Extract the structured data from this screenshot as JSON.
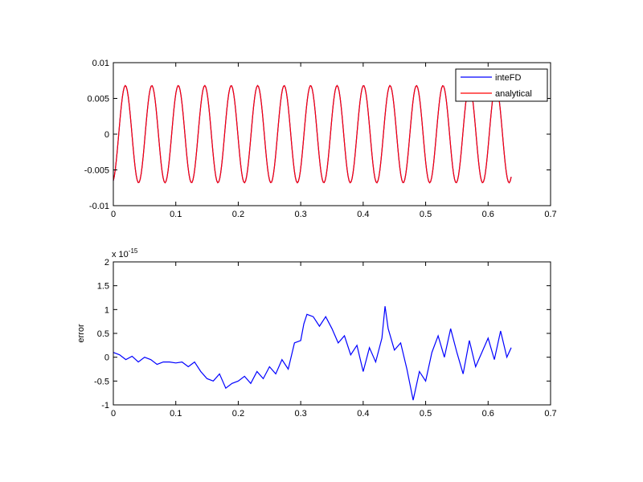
{
  "chart_data": [
    {
      "type": "line",
      "xlabel": "",
      "ylabel": "",
      "xlim": [
        0,
        0.7
      ],
      "ylim": [
        -0.01,
        0.01
      ],
      "x_ticks": [
        "0",
        "0.1",
        "0.2",
        "0.3",
        "0.4",
        "0.5",
        "0.6",
        "0.7"
      ],
      "y_ticks": [
        "-0.01",
        "-0.005",
        "0",
        "0.005",
        "0.01"
      ],
      "grid": false,
      "legend": {
        "placement": "top-right",
        "entries": [
          "inteFD",
          "analytical"
        ]
      },
      "series": [
        {
          "name": "inteFD",
          "color": "#0000ff",
          "function": "sinusoid",
          "amplitude": 0.0068,
          "frequency": 23.6,
          "phase": -1.28,
          "x_start": 0,
          "x_end": 0.637
        },
        {
          "name": "analytical",
          "color": "#ff0000",
          "function": "sinusoid",
          "amplitude": 0.0068,
          "frequency": 23.6,
          "phase": -1.28,
          "x_start": 0,
          "x_end": 0.637
        }
      ]
    },
    {
      "type": "line",
      "xlabel": "",
      "ylabel": "error",
      "y_multiplier": "x 10",
      "y_exponent": "-15",
      "xlim": [
        0,
        0.7
      ],
      "ylim": [
        -1,
        2
      ],
      "x_ticks": [
        "0",
        "0.1",
        "0.2",
        "0.3",
        "0.4",
        "0.5",
        "0.6",
        "0.7"
      ],
      "y_ticks": [
        "-1",
        "-0.5",
        "0",
        "0.5",
        "1",
        "1.5",
        "2"
      ],
      "grid": false,
      "series": [
        {
          "color": "#0000ff",
          "x": [
            0,
            0.01,
            0.02,
            0.03,
            0.04,
            0.05,
            0.06,
            0.07,
            0.08,
            0.09,
            0.1,
            0.11,
            0.12,
            0.13,
            0.14,
            0.15,
            0.16,
            0.17,
            0.18,
            0.19,
            0.2,
            0.21,
            0.22,
            0.23,
            0.24,
            0.25,
            0.26,
            0.27,
            0.28,
            0.29,
            0.3,
            0.305,
            0.31,
            0.32,
            0.33,
            0.34,
            0.35,
            0.36,
            0.37,
            0.38,
            0.39,
            0.4,
            0.41,
            0.42,
            0.43,
            0.435,
            0.44,
            0.45,
            0.46,
            0.47,
            0.48,
            0.49,
            0.5,
            0.51,
            0.52,
            0.53,
            0.54,
            0.55,
            0.56,
            0.57,
            0.58,
            0.59,
            0.6,
            0.61,
            0.62,
            0.63,
            0.637
          ],
          "y": [
            0.1,
            0.05,
            -0.05,
            0.02,
            -0.1,
            0.0,
            -0.05,
            -0.15,
            -0.1,
            -0.1,
            -0.12,
            -0.1,
            -0.2,
            -0.1,
            -0.3,
            -0.45,
            -0.5,
            -0.35,
            -0.65,
            -0.55,
            -0.5,
            -0.4,
            -0.55,
            -0.3,
            -0.45,
            -0.2,
            -0.35,
            -0.05,
            -0.25,
            0.3,
            0.35,
            0.7,
            0.9,
            0.85,
            0.65,
            0.85,
            0.6,
            0.3,
            0.45,
            0.05,
            0.25,
            -0.3,
            0.2,
            -0.1,
            0.4,
            1.07,
            0.6,
            0.15,
            0.3,
            -0.25,
            -0.9,
            -0.3,
            -0.5,
            0.1,
            0.45,
            0.0,
            0.6,
            0.1,
            -0.35,
            0.35,
            -0.2,
            0.1,
            0.4,
            -0.05,
            0.55,
            0.0,
            0.2
          ]
        }
      ]
    }
  ]
}
